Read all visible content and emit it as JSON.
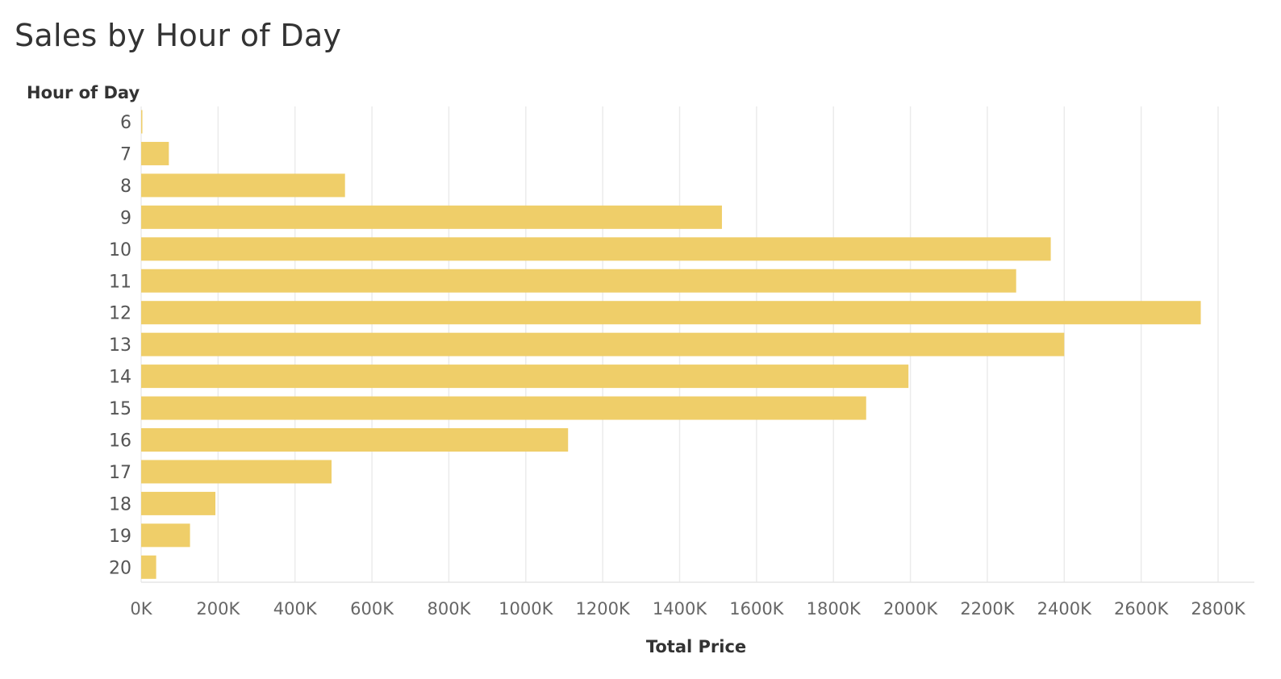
{
  "chart_data": {
    "type": "bar",
    "orientation": "horizontal",
    "title": "Sales by Hour of Day",
    "ylabel": "Hour of Day",
    "xlabel": "Total Price",
    "categories": [
      "6",
      "7",
      "8",
      "9",
      "10",
      "11",
      "12",
      "13",
      "14",
      "15",
      "16",
      "17",
      "18",
      "19",
      "20"
    ],
    "values": [
      1000,
      72000,
      530000,
      1510000,
      2365000,
      2275000,
      2755000,
      2400000,
      1995000,
      1885000,
      1110000,
      495000,
      193000,
      127000,
      39000
    ],
    "xlim": [
      0,
      2800000
    ],
    "xticks": [
      "0K",
      "200K",
      "400K",
      "600K",
      "800K",
      "1000K",
      "1200K",
      "1400K",
      "1600K",
      "1800K",
      "2000K",
      "2200K",
      "2400K",
      "2600K",
      "2800K"
    ],
    "bar_color": "#efce69",
    "grid": true
  }
}
